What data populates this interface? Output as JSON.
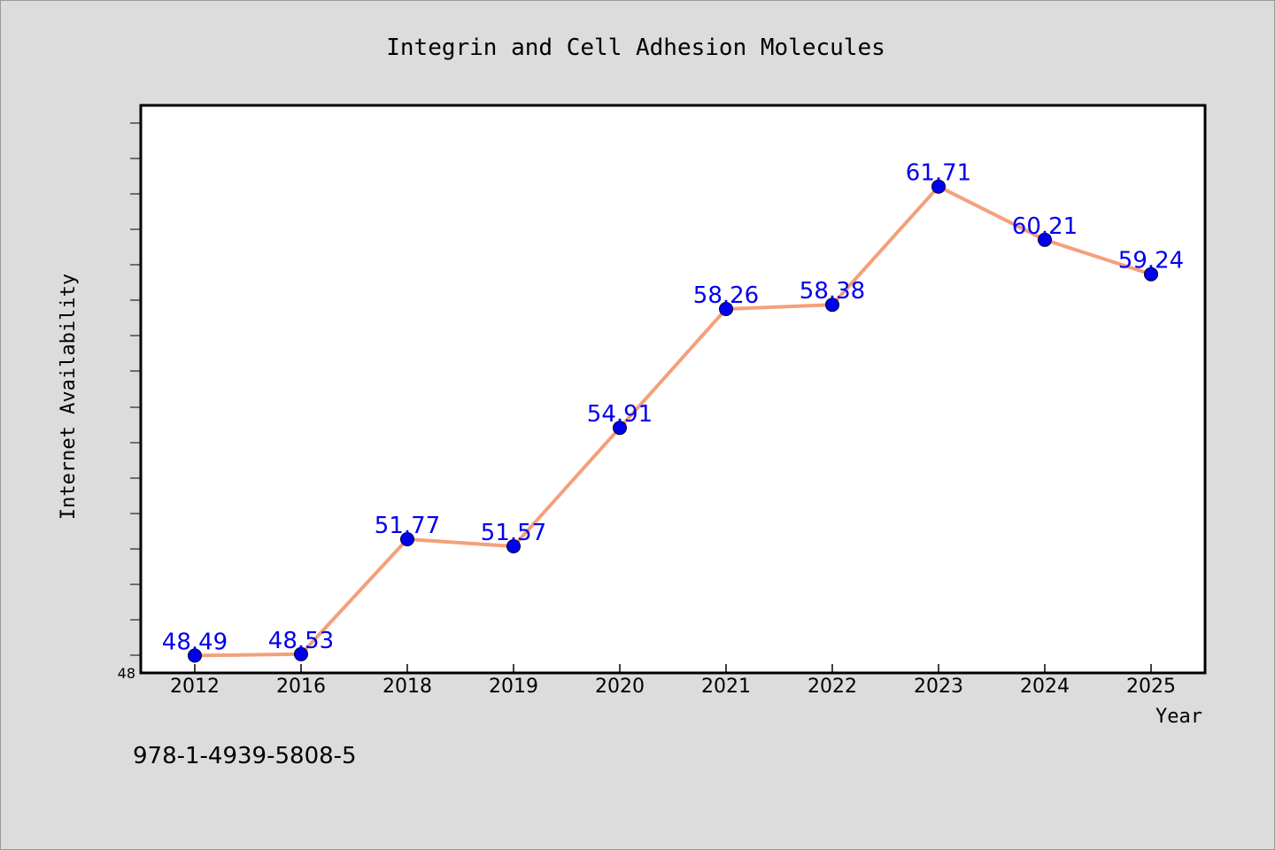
{
  "chart_data": {
    "type": "line",
    "title": "Integrin and Cell Adhesion Molecules",
    "xlabel": "Year",
    "ylabel": "Internet Availability",
    "categories": [
      "2012",
      "2016",
      "2018",
      "2019",
      "2020",
      "2021",
      "2022",
      "2023",
      "2024",
      "2025"
    ],
    "series": [
      {
        "values": [
          48.49,
          48.53,
          51.77,
          51.57,
          54.91,
          58.26,
          58.38,
          61.71,
          60.21,
          59.24
        ],
        "labels": [
          "48.49",
          "48.53",
          "51.77",
          "51.57",
          "54.91",
          "58.26",
          "58.38",
          "61.71",
          "60.21",
          "59.24"
        ],
        "line_color": "#f4a07a",
        "marker_color": "#0000ee",
        "label_color": "#0000ee"
      }
    ],
    "ylim": [
      48,
      64
    ],
    "y_tick_labels": [
      "48"
    ],
    "grid": false,
    "legend": "none"
  },
  "footer_text": "978-1-4939-5808-5",
  "colors": {
    "background": "#dcdcdc",
    "plot_background": "#ffffff",
    "axis": "#000000"
  }
}
